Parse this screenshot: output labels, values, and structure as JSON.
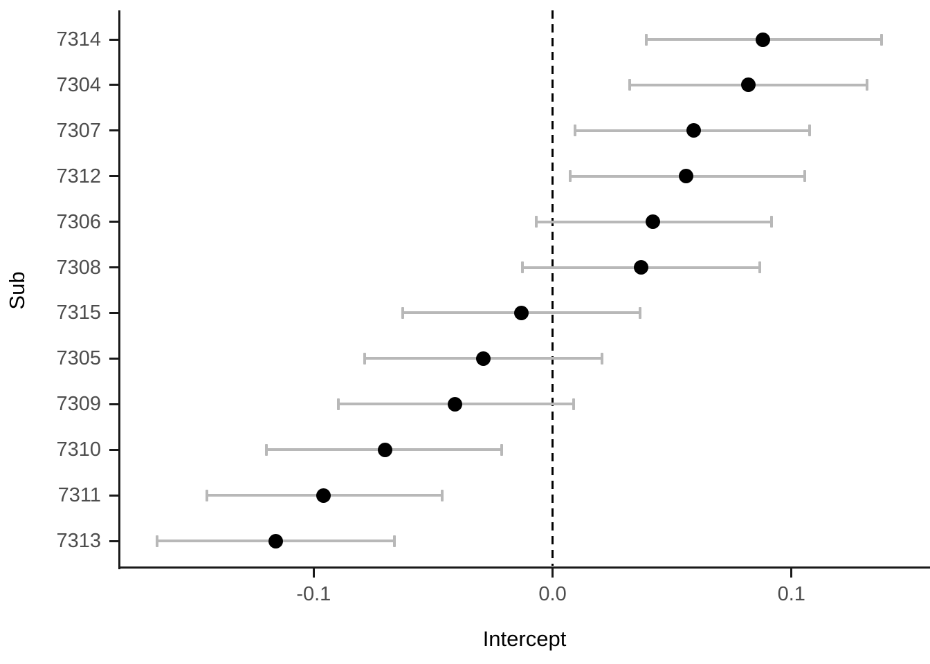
{
  "chart_data": {
    "type": "scatter",
    "variant": "forest-plot-pointrange",
    "title": "",
    "xlabel": "Intercept",
    "ylabel": "Sub",
    "legend_position": "none",
    "grid": false,
    "xlim": [
      -0.1815,
      0.158
    ],
    "x_ticks": [
      {
        "value": -0.1,
        "label": "-0.1"
      },
      {
        "value": 0.0,
        "label": "0.0"
      },
      {
        "value": 0.1,
        "label": "0.1"
      }
    ],
    "reference_line": {
      "x": 0.0,
      "style": "dashed",
      "color": "#000000"
    },
    "categories": [
      "7314",
      "7304",
      "7307",
      "7312",
      "7306",
      "7308",
      "7315",
      "7305",
      "7309",
      "7310",
      "7311",
      "7313"
    ],
    "rows": [
      {
        "sub": "7314",
        "estimate": 0.088,
        "lower": 0.039,
        "upper": 0.138
      },
      {
        "sub": "7304",
        "estimate": 0.082,
        "lower": 0.032,
        "upper": 0.132
      },
      {
        "sub": "7307",
        "estimate": 0.059,
        "lower": 0.009,
        "upper": 0.108
      },
      {
        "sub": "7312",
        "estimate": 0.056,
        "lower": 0.007,
        "upper": 0.106
      },
      {
        "sub": "7306",
        "estimate": 0.042,
        "lower": -0.007,
        "upper": 0.092
      },
      {
        "sub": "7308",
        "estimate": 0.037,
        "lower": -0.013,
        "upper": 0.087
      },
      {
        "sub": "7315",
        "estimate": -0.013,
        "lower": -0.063,
        "upper": 0.037
      },
      {
        "sub": "7305",
        "estimate": -0.029,
        "lower": -0.079,
        "upper": 0.021
      },
      {
        "sub": "7309",
        "estimate": -0.041,
        "lower": -0.09,
        "upper": 0.009
      },
      {
        "sub": "7310",
        "estimate": -0.07,
        "lower": -0.12,
        "upper": -0.021
      },
      {
        "sub": "7311",
        "estimate": -0.096,
        "lower": -0.145,
        "upper": -0.046
      },
      {
        "sub": "7313",
        "estimate": -0.116,
        "lower": -0.166,
        "upper": -0.066
      }
    ],
    "colors": {
      "point": "#000000",
      "interval": "#b8b8b8",
      "axis": "#1a1a1a",
      "tick_label": "#4d4d4d",
      "axis_title": "#000000",
      "background": "#ffffff"
    }
  }
}
